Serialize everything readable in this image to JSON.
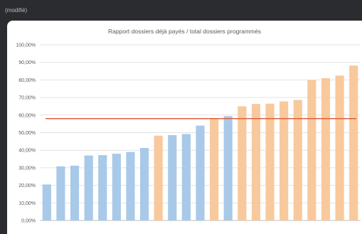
{
  "window": {
    "status": "(modifié)"
  },
  "chart_data": {
    "type": "bar",
    "title": "Rapport dossiers déjà payés / total dossiers programmés",
    "xlabel": "",
    "ylabel": "",
    "ylim": [
      0,
      100
    ],
    "y_ticks": [
      "0,00%",
      "10,00%",
      "20,00%",
      "30,00%",
      "40,00%",
      "50,00%",
      "60,00%",
      "70,00%",
      "80,00%",
      "90,00%",
      "100,00%"
    ],
    "values": [
      20.5,
      30.8,
      31.2,
      37.0,
      37.2,
      38.0,
      39.0,
      41.3,
      48.3,
      48.6,
      49.2,
      54.0,
      58.3,
      59.4,
      65.0,
      66.3,
      66.5,
      67.8,
      68.6,
      80.0,
      81.0,
      82.5,
      88.2
    ],
    "bar_colors": [
      "#a9c9e8",
      "#a9c9e8",
      "#a9c9e8",
      "#a9c9e8",
      "#a9c9e8",
      "#a9c9e8",
      "#a9c9e8",
      "#a9c9e8",
      "#f8c99c",
      "#a9c9e8",
      "#a9c9e8",
      "#a9c9e8",
      "#f8c99c",
      "#a9c9e8",
      "#f8c99c",
      "#f8c99c",
      "#f8c99c",
      "#f8c99c",
      "#f8c99c",
      "#f8c99c",
      "#f8c99c",
      "#f8c99c",
      "#f8c99c"
    ],
    "reference_line": 58,
    "reference_color": "#e06040",
    "grid": true,
    "legend": "none"
  }
}
